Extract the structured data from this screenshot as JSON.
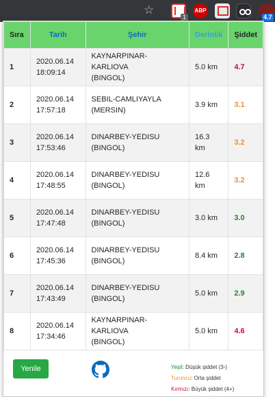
{
  "browser": {
    "gmail_badge": "1",
    "abp_label": "ABP",
    "quake_badge": "4.7"
  },
  "table": {
    "headers": {
      "sira": "Sıra",
      "tarih": "Tarih",
      "sehir": "Şehir",
      "derinlik": "Derinlik",
      "siddet": "Şiddet"
    },
    "rows": [
      {
        "sira": "1",
        "date": "2020.06.14",
        "time": "18:09:14",
        "place": "KAYNARPINAR-KARLIOVA",
        "province": "(BINGOL)",
        "depth1": "5.0 km",
        "depth2": "",
        "magnitude": "4.7",
        "level": "red"
      },
      {
        "sira": "2",
        "date": "2020.06.14",
        "time": "17:57:18",
        "place": "SEBIL-CAMLIYAYLA",
        "province": "(MERSIN)",
        "depth1": "3.9 km",
        "depth2": "",
        "magnitude": "3.1",
        "level": "orange"
      },
      {
        "sira": "3",
        "date": "2020.06.14",
        "time": "17:53:46",
        "place": "DINARBEY-YEDISU",
        "province": "(BINGOL)",
        "depth1": "16.3",
        "depth2": "km",
        "magnitude": "3.2",
        "level": "orange"
      },
      {
        "sira": "4",
        "date": "2020.06.14",
        "time": "17:48:55",
        "place": "DINARBEY-YEDISU",
        "province": "(BINGOL)",
        "depth1": "12.6",
        "depth2": "km",
        "magnitude": "3.2",
        "level": "orange"
      },
      {
        "sira": "5",
        "date": "2020.06.14",
        "time": "17:47:48",
        "place": "DINARBEY-YEDISU",
        "province": "(BINGOL)",
        "depth1": "3.0 km",
        "depth2": "",
        "magnitude": "3.0",
        "level": "green"
      },
      {
        "sira": "6",
        "date": "2020.06.14",
        "time": "17:45:36",
        "place": "DINARBEY-YEDISU",
        "province": "(BINGOL)",
        "depth1": "8.4 km",
        "depth2": "",
        "magnitude": "2.8",
        "level": "green"
      },
      {
        "sira": "7",
        "date": "2020.06.14",
        "time": "17:43:49",
        "place": "DINARBEY-YEDISU",
        "province": "(BINGOL)",
        "depth1": "5.0 km",
        "depth2": "",
        "magnitude": "2.9",
        "level": "green"
      },
      {
        "sira": "8",
        "date": "2020.06.14",
        "time": "17:34:46",
        "place": "KAYNARPINAR-KARLIOVA",
        "province": "(BINGOL)",
        "depth1": "5.0 km",
        "depth2": "",
        "magnitude": "4.6",
        "level": "red"
      }
    ]
  },
  "footer": {
    "refresh_label": "Yenile",
    "github_icon": "github-icon",
    "legend": {
      "green_key": "Yeşil",
      "green_text": ": Düşük şiddet (3-)",
      "orange_key": "Turuncu",
      "orange_text": ": Orta şiddet",
      "red_key": "Kırmızı",
      "red_text": ": Büyük şiddet (4+)"
    }
  },
  "colors": {
    "header_bg": "#69d46b",
    "red": "#c8102e",
    "orange": "#e8932f",
    "green": "#1b8a2a",
    "button": "#28a745"
  }
}
